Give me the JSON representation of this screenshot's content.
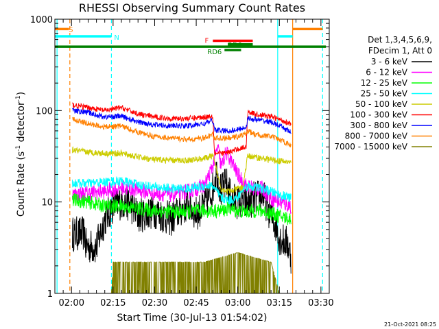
{
  "chart_data": {
    "type": "line",
    "title": "RHESSI Observing Summary Count Rates",
    "xlabel": "Start Time (30-Jul-13 01:54:02)",
    "ylabel_main": "Count Rate (s",
    "ylabel_sup1": "-1",
    "ylabel_mid": " detector",
    "ylabel_sup2": "-1",
    "ylabel_end": ")",
    "y_scale": "log",
    "ylim": [
      1,
      1000
    ],
    "xlim": [
      1.9,
      3.55
    ],
    "x_ticks": [
      {
        "t": 2.0,
        "label": "02:00"
      },
      {
        "t": 2.25,
        "label": "02:15"
      },
      {
        "t": 2.5,
        "label": "02:30"
      },
      {
        "t": 2.75,
        "label": "02:45"
      },
      {
        "t": 3.0,
        "label": "03:00"
      },
      {
        "t": 3.25,
        "label": "03:15"
      },
      {
        "t": 3.5,
        "label": "03:30"
      }
    ],
    "y_ticks": [
      {
        "v": 1,
        "label": "1"
      },
      {
        "v": 10,
        "label": "10"
      },
      {
        "v": 100,
        "label": "100"
      },
      {
        "v": 1000,
        "label": "1000"
      }
    ],
    "legend": {
      "placement": "right",
      "header": [
        "Det 1,3,4,5,6,9,",
        "FDecim 1, Att 0"
      ],
      "entries": [
        {
          "label": "3 - 6 keV",
          "color": "#000000"
        },
        {
          "label": "6 - 12 keV",
          "color": "#ff00ff"
        },
        {
          "label": "12 - 25 keV",
          "color": "#00ff00"
        },
        {
          "label": "25 - 50 keV",
          "color": "#00ffff"
        },
        {
          "label": "50 - 100 keV",
          "color": "#cccc00"
        },
        {
          "label": "100 - 300 keV",
          "color": "#ff0000"
        },
        {
          "label": "300 - 800 keV",
          "color": "#0000ff"
        },
        {
          "label": "800 - 7000 keV",
          "color": "#ff8000"
        },
        {
          "label": "7000 - 15000 keV",
          "color": "#808000"
        }
      ]
    },
    "flags": [
      {
        "label": "S",
        "color": "#ff8000",
        "segments": [
          [
            1.9,
            1.985
          ],
          [
            3.33,
            3.51
          ]
        ],
        "level": 780
      },
      {
        "label": "N",
        "color": "#00ffff",
        "segments": [
          [
            1.9,
            2.24
          ],
          [
            3.24,
            3.33
          ]
        ],
        "level": 650
      },
      {
        "label": "",
        "color": "#008000",
        "segments": [
          [
            1.9,
            3.53
          ]
        ],
        "level": 500
      },
      {
        "label": "F",
        "color": "#ff0000",
        "segments": [
          [
            2.85,
            3.09
          ]
        ],
        "level": 580
      },
      {
        "label": "RD0",
        "color": "#008000",
        "segments": [
          [
            2.94,
            3.09
          ]
        ],
        "level": 530
      },
      {
        "label": "RD6",
        "color": "#008000",
        "segments": [
          [
            2.92,
            3.02
          ]
        ],
        "level": 460
      }
    ],
    "vlines": [
      {
        "t": 1.913,
        "color": "#00ffff",
        "style": "solid"
      },
      {
        "t": 1.99,
        "color": "#ff8000",
        "style": "dashed"
      },
      {
        "t": 2.24,
        "color": "#00ffff",
        "style": "dashed"
      },
      {
        "t": 3.24,
        "color": "#00ffff",
        "style": "solid"
      },
      {
        "t": 3.33,
        "color": "#ff8000",
        "style": "solid"
      },
      {
        "t": 3.51,
        "color": "#00ffff",
        "style": "dashed"
      }
    ],
    "series": [
      {
        "name": "3 - 6 keV",
        "color": "#000000",
        "t_start": 2.005,
        "t_end": 3.32,
        "x": [
          2.005,
          2.08,
          2.085,
          2.15,
          2.2,
          2.25,
          2.3,
          2.35,
          2.4,
          2.45,
          2.5,
          2.55,
          2.6,
          2.65,
          2.7,
          2.75,
          2.8,
          2.85,
          2.87,
          2.9,
          2.93,
          2.96,
          3.0,
          3.05,
          3.1,
          3.15,
          3.2,
          3.24,
          3.25,
          3.3,
          3.32
        ],
        "values": [
          4.5,
          4.5,
          3.3,
          3.2,
          6.5,
          9.0,
          10.0,
          9.5,
          7.0,
          7.5,
          8.0,
          7.0,
          6.5,
          8.0,
          9.5,
          7.5,
          9.0,
          14.0,
          22.0,
          13.0,
          16.0,
          11.0,
          10.0,
          9.5,
          11.0,
          12.0,
          7.0,
          5.0,
          4.0,
          3.5,
          2.5
        ],
        "jitter": 0.45
      },
      {
        "name": "6 - 12 keV",
        "color": "#ff00ff",
        "t_start": 2.005,
        "t_end": 3.32,
        "x": [
          2.005,
          2.1,
          2.2,
          2.3,
          2.4,
          2.5,
          2.6,
          2.7,
          2.8,
          2.85,
          2.88,
          2.9,
          2.93,
          2.96,
          3.0,
          3.05,
          3.1,
          3.15,
          3.2,
          3.25,
          3.32
        ],
        "values": [
          12.0,
          12.5,
          13.0,
          14.5,
          13.5,
          12.5,
          12.0,
          13.0,
          15.0,
          25.0,
          40.0,
          24.0,
          35.0,
          28.0,
          20.0,
          15.0,
          14.0,
          14.0,
          11.0,
          10.0,
          9.0
        ],
        "jitter": 0.2
      },
      {
        "name": "12 - 25 keV",
        "color": "#00ff00",
        "t_start": 2.005,
        "t_end": 3.32,
        "x": [
          2.005,
          2.1,
          2.2,
          2.3,
          2.4,
          2.5,
          2.6,
          2.7,
          2.8,
          2.9,
          2.95,
          3.0,
          3.05,
          3.1,
          3.15,
          3.2,
          3.25,
          3.32
        ],
        "values": [
          10.5,
          10.0,
          9.0,
          9.0,
          8.5,
          8.0,
          7.8,
          7.8,
          8.0,
          8.0,
          8.5,
          8.0,
          7.8,
          8.0,
          8.0,
          7.5,
          7.0,
          6.5
        ],
        "jitter": 0.18
      },
      {
        "name": "25 - 50 keV",
        "color": "#00ffff",
        "t_start": 2.005,
        "t_end": 3.32,
        "x": [
          2.005,
          2.1,
          2.2,
          2.3,
          2.4,
          2.5,
          2.6,
          2.7,
          2.8,
          2.85,
          2.9,
          2.95,
          3.0,
          3.03,
          3.06,
          3.1,
          3.15,
          3.2,
          3.25,
          3.32
        ],
        "values": [
          16.0,
          16.0,
          16.5,
          17.0,
          15.5,
          14.5,
          14.0,
          14.0,
          15.0,
          15.0,
          11.0,
          10.5,
          11.0,
          14.0,
          15.0,
          14.5,
          14.0,
          13.0,
          12.0,
          11.0
        ],
        "jitter": 0.12
      },
      {
        "name": "50 - 100 keV",
        "color": "#cccc00",
        "t_start": 2.005,
        "t_end": 3.32,
        "x": [
          2.005,
          2.1,
          2.2,
          2.3,
          2.4,
          2.5,
          2.6,
          2.7,
          2.8,
          2.85,
          2.9,
          2.95,
          3.0,
          3.03,
          3.06,
          3.1,
          3.2,
          3.25,
          3.32
        ],
        "values": [
          37.0,
          35.0,
          34.0,
          34.0,
          31.0,
          29.0,
          28.5,
          28.5,
          30.0,
          32.0,
          14.0,
          13.0,
          14.0,
          14.5,
          32.0,
          31.0,
          29.0,
          28.0,
          27.0
        ],
        "jitter": 0.08
      },
      {
        "name": "100 - 300 keV",
        "color": "#ff0000",
        "t_start": 2.005,
        "t_end": 3.32,
        "x": [
          2.005,
          2.1,
          2.2,
          2.3,
          2.4,
          2.5,
          2.6,
          2.7,
          2.8,
          2.85,
          2.86,
          2.9,
          2.95,
          3.0,
          3.05,
          3.06,
          3.1,
          3.2,
          3.25,
          3.32
        ],
        "values": [
          115.0,
          108.0,
          100.0,
          108.0,
          92.0,
          85.0,
          82.0,
          82.0,
          85.0,
          88.0,
          34.0,
          34.0,
          35.0,
          38.0,
          40.0,
          98.0,
          92.0,
          86.0,
          80.0,
          72.0
        ],
        "jitter": 0.07
      },
      {
        "name": "300 - 800 keV",
        "color": "#0000ff",
        "t_start": 2.005,
        "t_end": 3.32,
        "x": [
          2.005,
          2.1,
          2.2,
          2.3,
          2.4,
          2.5,
          2.6,
          2.7,
          2.8,
          2.85,
          2.86,
          2.9,
          2.95,
          3.0,
          3.05,
          3.06,
          3.1,
          3.2,
          3.25,
          3.32
        ],
        "values": [
          100.0,
          95.0,
          85.0,
          87.0,
          75.0,
          70.0,
          68.0,
          68.0,
          72.0,
          78.0,
          62.0,
          60.0,
          60.0,
          62.0,
          66.0,
          82.0,
          80.0,
          75.0,
          68.0,
          58.0
        ],
        "jitter": 0.07
      },
      {
        "name": "800 - 7000 keV",
        "color": "#ff8000",
        "t_start": 2.005,
        "t_end": 3.32,
        "x": [
          2.005,
          2.1,
          2.2,
          2.3,
          2.4,
          2.5,
          2.6,
          2.7,
          2.8,
          2.85,
          2.86,
          2.9,
          2.95,
          3.0,
          3.05,
          3.06,
          3.1,
          3.2,
          3.25,
          3.32
        ],
        "values": [
          80.0,
          72.0,
          66.0,
          68.0,
          58.0,
          52.0,
          50.0,
          48.0,
          50.0,
          55.0,
          50.0,
          50.0,
          50.0,
          52.0,
          56.0,
          60.0,
          55.0,
          52.0,
          48.0,
          42.0
        ],
        "jitter": 0.07
      },
      {
        "name": "7000 - 15000 keV",
        "color": "#808000",
        "t_start": 2.005,
        "t_end": 3.32,
        "x": [
          2.005,
          2.24,
          2.25,
          2.62,
          2.8,
          3.0,
          3.2,
          3.25,
          3.32
        ],
        "values": [
          1.0,
          1.0,
          2.2,
          2.2,
          2.2,
          2.8,
          2.2,
          1.0,
          1.0
        ],
        "jitter": 0.35
      }
    ],
    "footer": "21-Oct-2021 08:25"
  }
}
